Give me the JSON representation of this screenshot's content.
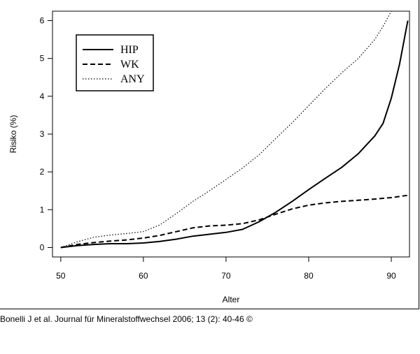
{
  "chart_data": {
    "type": "line",
    "xlabel": "Alter",
    "ylabel": "Risiko (%)",
    "xlim": [
      49,
      92.2
    ],
    "ylim": [
      -0.25,
      6.25
    ],
    "xticks": [
      50,
      60,
      70,
      80,
      90
    ],
    "yticks": [
      0,
      1,
      2,
      3,
      4,
      5,
      6
    ],
    "grid": false,
    "legend_position": "top-left",
    "series": [
      {
        "name": "HIP",
        "line_style": "solid",
        "x": [
          50,
          52,
          54,
          56,
          58,
          60,
          62,
          64,
          66,
          68,
          70,
          72,
          74,
          76,
          78,
          80,
          82,
          84,
          86,
          88,
          89,
          90,
          91,
          92
        ],
        "y": [
          0,
          0.05,
          0.08,
          0.1,
          0.1,
          0.12,
          0.16,
          0.22,
          0.3,
          0.35,
          0.4,
          0.48,
          0.68,
          0.93,
          1.22,
          1.53,
          1.83,
          2.12,
          2.48,
          2.95,
          3.28,
          3.95,
          4.85,
          6.0
        ]
      },
      {
        "name": "WK",
        "line_style": "dashed",
        "x": [
          50,
          52,
          54,
          56,
          58,
          60,
          62,
          64,
          66,
          68,
          70,
          72,
          74,
          76,
          78,
          80,
          82,
          84,
          86,
          88,
          90,
          92
        ],
        "y": [
          0,
          0.08,
          0.13,
          0.17,
          0.2,
          0.25,
          0.32,
          0.42,
          0.52,
          0.57,
          0.59,
          0.63,
          0.73,
          0.88,
          1.02,
          1.12,
          1.18,
          1.22,
          1.25,
          1.28,
          1.32,
          1.38
        ]
      },
      {
        "name": "ANY",
        "line_style": "dotted",
        "x": [
          50,
          52,
          54,
          56,
          58,
          60,
          62,
          64,
          66,
          68,
          70,
          72,
          74,
          76,
          78,
          80,
          82,
          84,
          86,
          88,
          89,
          90
        ],
        "y": [
          0,
          0.15,
          0.27,
          0.33,
          0.37,
          0.42,
          0.6,
          0.9,
          1.22,
          1.5,
          1.8,
          2.1,
          2.45,
          2.88,
          3.3,
          3.75,
          4.2,
          4.62,
          5.0,
          5.5,
          5.85,
          6.25
        ]
      }
    ]
  },
  "citation": "Bonelli J et al. Journal für Mineralstoffwechsel 2006; 13 (2): 40-46 ©"
}
